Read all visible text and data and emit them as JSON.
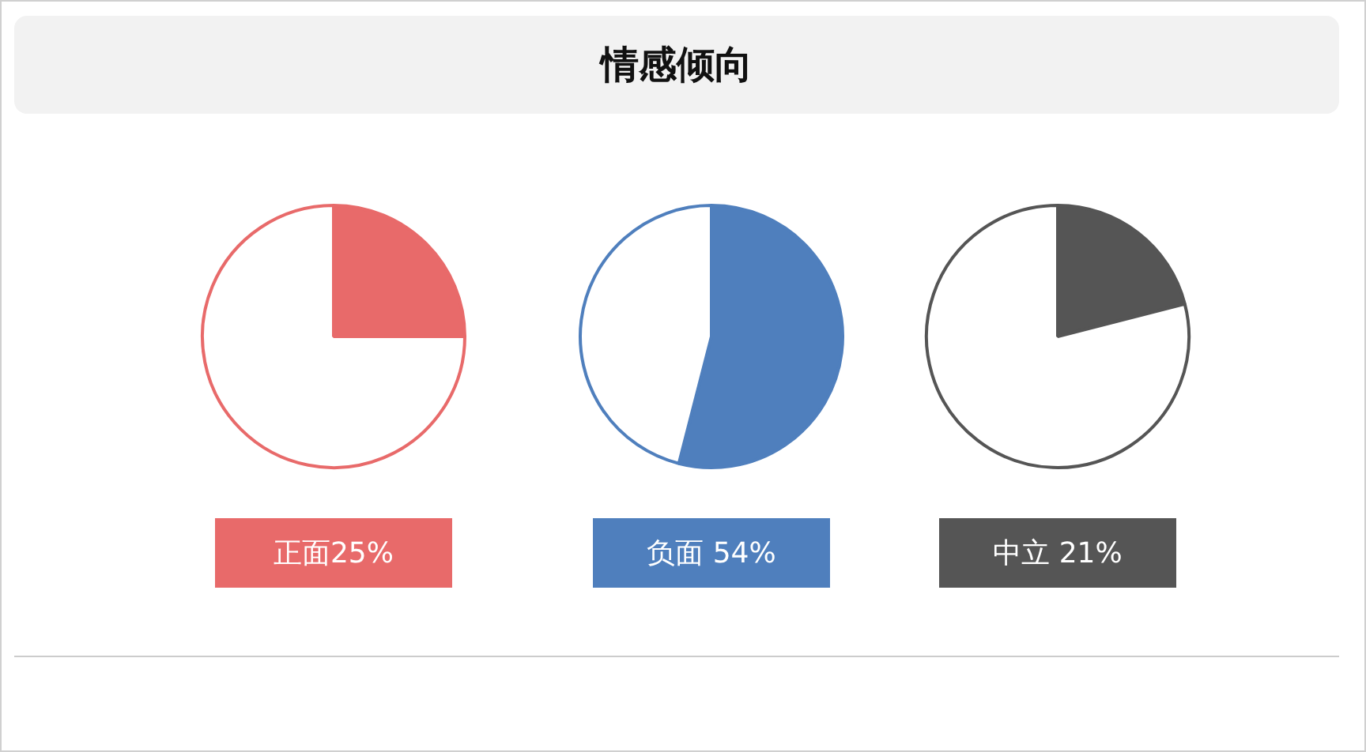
{
  "chart_data": [
    {
      "type": "other",
      "title": "情感倾向"
    },
    {
      "type": "pie",
      "categories": [
        null,
        null
      ],
      "values": [
        25,
        75
      ],
      "colors": [
        "#e86a6a",
        "#ffffff"
      ],
      "annotations": [
        "正面25%"
      ]
    },
    {
      "type": "pie",
      "categories": [
        null,
        null
      ],
      "values": [
        54,
        46
      ],
      "colors": [
        "#4f7fbd",
        "#ffffff"
      ],
      "annotations": [
        "负面 54%"
      ]
    },
    {
      "type": "pie",
      "categories": [
        null,
        null
      ],
      "values": [
        21,
        79
      ],
      "colors": [
        "#555555",
        "#ffffff"
      ],
      "annotations": [
        "中立 21%"
      ]
    }
  ]
}
